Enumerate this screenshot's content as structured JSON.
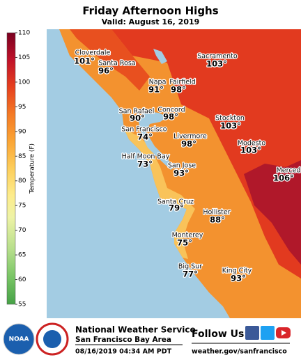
{
  "header": {
    "title": "Friday Afternoon Highs",
    "subtitle": "Valid: August 16, 2019"
  },
  "colorbar": {
    "label": "Temperature (F)",
    "range": [
      55,
      110
    ],
    "ticks": [
      55,
      60,
      65,
      70,
      75,
      80,
      85,
      90,
      95,
      100,
      105,
      110
    ]
  },
  "cities": [
    {
      "name": "Cloverdale",
      "temp": "101°"
    },
    {
      "name": "Santa Rosa",
      "temp": "96°"
    },
    {
      "name": "Napa",
      "temp": "91°"
    },
    {
      "name": "Fairfield",
      "temp": "98°"
    },
    {
      "name": "Sacramento",
      "temp": "103°"
    },
    {
      "name": "San Rafael",
      "temp": "90°"
    },
    {
      "name": "Concord",
      "temp": "98°"
    },
    {
      "name": "Stockton",
      "temp": "103°"
    },
    {
      "name": "San Francisco",
      "temp": "74°"
    },
    {
      "name": "Livermore",
      "temp": "98°"
    },
    {
      "name": "Modesto",
      "temp": "103°"
    },
    {
      "name": "Merced",
      "temp": "106°"
    },
    {
      "name": "Half Moon Bay",
      "temp": "73°"
    },
    {
      "name": "San Jose",
      "temp": "93°"
    },
    {
      "name": "Santa Cruz",
      "temp": "79°"
    },
    {
      "name": "Hollister",
      "temp": "88°"
    },
    {
      "name": "Monterey",
      "temp": "75°"
    },
    {
      "name": "Big Sur",
      "temp": "77°"
    },
    {
      "name": "King City",
      "temp": "93°"
    }
  ],
  "footer": {
    "logo": "NOAA",
    "office": "National Weather Service",
    "area": "San Francisco Bay Area",
    "issued": "08/16/2019 04:34 AM PDT",
    "follow": "Follow Us:",
    "url": "weather.gov/sanfrancisco"
  }
}
